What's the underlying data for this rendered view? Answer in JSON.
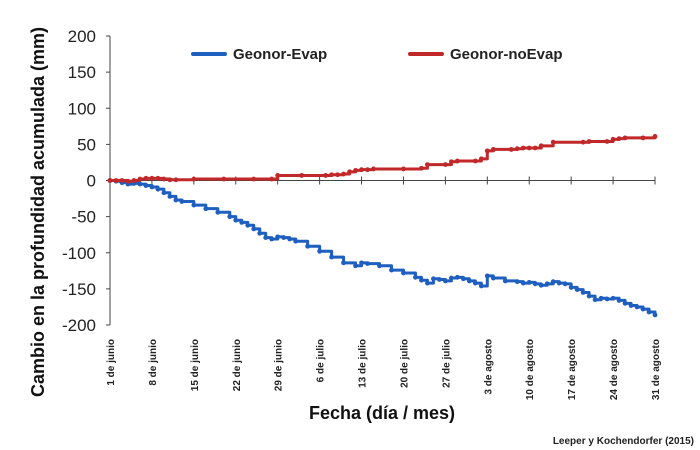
{
  "chart_data": {
    "type": "line",
    "xlabel": "Fecha (día / mes)",
    "ylabel": "Cambio en la profundidad acumulada (mm)",
    "ylim": [
      -200,
      200
    ],
    "yticks": [
      "200",
      "150",
      "100",
      "50",
      "0",
      "-50",
      "-100",
      "-150",
      "-200"
    ],
    "xlim": [
      1,
      92
    ],
    "xticks": [
      {
        "label": "1 de junio",
        "day": 1
      },
      {
        "label": "8 de junio",
        "day": 8
      },
      {
        "label": "15 de junio",
        "day": 15
      },
      {
        "label": "22 de junio",
        "day": 22
      },
      {
        "label": "29 de junio",
        "day": 29
      },
      {
        "label": "6 de julio",
        "day": 36
      },
      {
        "label": "13 de julio",
        "day": 43
      },
      {
        "label": "20 de julio",
        "day": 50
      },
      {
        "label": "27 de julio",
        "day": 57
      },
      {
        "label": "3 de agosto",
        "day": 64
      },
      {
        "label": "10 de agosto",
        "day": 71
      },
      {
        "label": "17 de agosto",
        "day": 78
      },
      {
        "label": "24 de agosto",
        "day": 85
      },
      {
        "label": "31 de agosto",
        "day": 92
      }
    ],
    "legend_position": "top",
    "series": [
      {
        "name": "Geonor-Evap",
        "color": "#1f5fbf",
        "x": [
          1,
          2,
          3,
          4,
          5,
          6,
          7,
          8,
          9,
          10,
          11,
          12,
          13,
          15,
          17,
          19,
          21,
          22,
          23,
          24,
          25,
          26,
          27,
          28,
          29,
          30,
          31,
          32,
          34,
          36,
          38,
          40,
          42,
          43,
          44,
          46,
          48,
          50,
          52,
          53,
          54,
          55,
          56,
          57,
          58,
          59,
          60,
          61,
          62,
          63,
          64,
          65,
          67,
          69,
          70,
          71,
          72,
          73,
          74,
          75,
          76,
          77,
          78,
          79,
          80,
          81,
          82,
          83,
          84,
          85,
          86,
          87,
          88,
          89,
          90,
          91,
          92
        ],
        "values": [
          0,
          -1,
          -3,
          -5,
          -4,
          -5,
          -7,
          -9,
          -12,
          -17,
          -22,
          -27,
          -29,
          -34,
          -39,
          -44,
          -50,
          -55,
          -58,
          -62,
          -67,
          -73,
          -79,
          -81,
          -78,
          -79,
          -81,
          -84,
          -91,
          -98,
          -106,
          -114,
          -118,
          -114,
          -115,
          -118,
          -124,
          -128,
          -134,
          -138,
          -142,
          -136,
          -137,
          -139,
          -135,
          -134,
          -136,
          -139,
          -142,
          -146,
          -132,
          -135,
          -139,
          -140,
          -142,
          -141,
          -143,
          -145,
          -143,
          -140,
          -142,
          -143,
          -148,
          -151,
          -155,
          -160,
          -165,
          -163,
          -164,
          -163,
          -166,
          -170,
          -173,
          -175,
          -178,
          -182,
          -186
        ]
      },
      {
        "name": "Geonor-noEvap",
        "color": "#c0282a",
        "x": [
          1,
          2,
          3,
          4,
          5,
          6,
          7,
          8,
          9,
          10,
          11,
          12,
          15,
          20,
          25,
          28,
          29,
          33,
          37,
          38,
          39,
          40,
          41,
          42,
          43,
          44,
          45,
          50,
          53,
          54,
          57,
          58,
          59,
          62,
          63,
          64,
          65,
          68,
          69,
          70,
          71,
          72,
          73,
          75,
          80,
          81,
          84,
          85,
          86,
          87,
          90,
          92
        ],
        "values": [
          0,
          0,
          0,
          -1,
          0,
          2,
          3,
          3,
          3,
          2,
          1,
          1,
          2,
          2,
          2,
          2,
          7,
          7,
          7,
          8,
          8,
          9,
          12,
          14,
          15,
          15,
          16,
          16,
          17,
          22,
          22,
          26,
          27,
          27,
          30,
          41,
          43,
          43,
          44,
          45,
          45,
          45,
          48,
          53,
          53,
          54,
          54,
          57,
          58,
          59,
          59,
          61
        ]
      }
    ],
    "credit": "Leeper y Kochendorfer (2015)"
  }
}
